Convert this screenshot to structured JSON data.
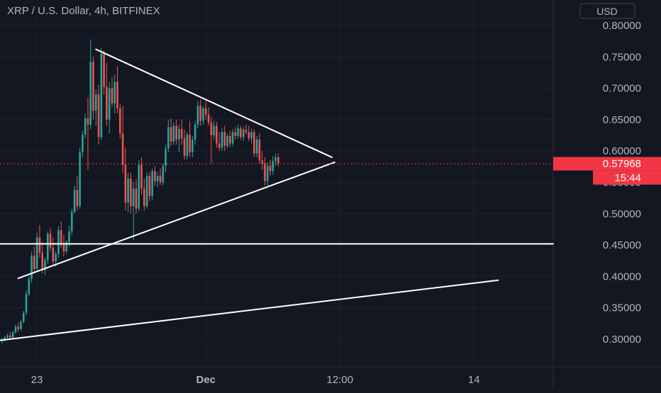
{
  "header": {
    "title": "XRP / U.S. Dollar, 4h, BITFINEX",
    "currency_button": "USD"
  },
  "colors": {
    "background": "#131722",
    "grid": "#1e222d",
    "up": "#26a69a",
    "down": "#ef5350",
    "axis_text": "#b2b5be",
    "lines": "#ffffff",
    "price_label": "#f23645"
  },
  "chart_data": {
    "type": "candlestick",
    "symbol": "XRP / U.S. Dollar",
    "interval": "4h",
    "exchange": "BITFINEX",
    "currency": "USD",
    "ylim": [
      0.28,
      0.82
    ],
    "y_ticks": [
      "0.80000",
      "0.75000",
      "0.70000",
      "0.65000",
      "0.60000",
      "0.55000",
      "0.50000",
      "0.45000",
      "0.40000",
      "0.35000",
      "0.30000"
    ],
    "x_ticks": [
      "23",
      "Dec",
      "12:00",
      "14"
    ],
    "x_tick_index": [
      13,
      76,
      126,
      176
    ],
    "last_price": "0.57968",
    "last_price_value": 0.57968,
    "countdown": "15:44",
    "candles": [
      [
        0.297,
        0.302,
        0.293,
        0.299
      ],
      [
        0.299,
        0.305,
        0.296,
        0.303
      ],
      [
        0.303,
        0.309,
        0.3,
        0.306
      ],
      [
        0.306,
        0.312,
        0.3,
        0.303
      ],
      [
        0.303,
        0.313,
        0.301,
        0.311
      ],
      [
        0.311,
        0.323,
        0.309,
        0.32
      ],
      [
        0.32,
        0.326,
        0.312,
        0.316
      ],
      [
        0.316,
        0.33,
        0.314,
        0.328
      ],
      [
        0.328,
        0.345,
        0.325,
        0.342
      ],
      [
        0.342,
        0.378,
        0.338,
        0.372
      ],
      [
        0.372,
        0.4,
        0.368,
        0.396
      ],
      [
        0.396,
        0.44,
        0.39,
        0.433
      ],
      [
        0.433,
        0.447,
        0.405,
        0.412
      ],
      [
        0.412,
        0.47,
        0.408,
        0.462
      ],
      [
        0.462,
        0.482,
        0.43,
        0.438
      ],
      [
        0.438,
        0.455,
        0.405,
        0.41
      ],
      [
        0.41,
        0.43,
        0.402,
        0.426
      ],
      [
        0.426,
        0.472,
        0.42,
        0.468
      ],
      [
        0.468,
        0.478,
        0.44,
        0.446
      ],
      [
        0.446,
        0.462,
        0.418,
        0.424
      ],
      [
        0.424,
        0.44,
        0.415,
        0.436
      ],
      [
        0.436,
        0.48,
        0.43,
        0.474
      ],
      [
        0.474,
        0.488,
        0.445,
        0.452
      ],
      [
        0.452,
        0.466,
        0.432,
        0.44
      ],
      [
        0.44,
        0.458,
        0.436,
        0.455
      ],
      [
        0.455,
        0.48,
        0.448,
        0.472
      ],
      [
        0.472,
        0.508,
        0.466,
        0.503
      ],
      [
        0.503,
        0.545,
        0.5,
        0.538
      ],
      [
        0.538,
        0.56,
        0.505,
        0.512
      ],
      [
        0.512,
        0.605,
        0.508,
        0.598
      ],
      [
        0.598,
        0.632,
        0.59,
        0.626
      ],
      [
        0.626,
        0.66,
        0.62,
        0.652
      ],
      [
        0.652,
        0.685,
        0.57,
        0.642
      ],
      [
        0.642,
        0.778,
        0.635,
        0.742
      ],
      [
        0.742,
        0.75,
        0.65,
        0.664
      ],
      [
        0.664,
        0.698,
        0.64,
        0.69
      ],
      [
        0.69,
        0.705,
        0.61,
        0.622
      ],
      [
        0.622,
        0.765,
        0.618,
        0.755
      ],
      [
        0.755,
        0.76,
        0.69,
        0.702
      ],
      [
        0.702,
        0.74,
        0.64,
        0.65
      ],
      [
        0.65,
        0.71,
        0.628,
        0.7
      ],
      [
        0.7,
        0.718,
        0.67,
        0.676
      ],
      [
        0.676,
        0.722,
        0.66,
        0.71
      ],
      [
        0.71,
        0.735,
        0.66,
        0.668
      ],
      [
        0.668,
        0.675,
        0.62,
        0.628
      ],
      [
        0.628,
        0.672,
        0.565,
        0.578
      ],
      [
        0.578,
        0.605,
        0.505,
        0.518
      ],
      [
        0.518,
        0.565,
        0.502,
        0.556
      ],
      [
        0.556,
        0.566,
        0.5,
        0.512
      ],
      [
        0.512,
        0.55,
        0.458,
        0.54
      ],
      [
        0.54,
        0.555,
        0.5,
        0.508
      ],
      [
        0.508,
        0.586,
        0.504,
        0.578
      ],
      [
        0.578,
        0.59,
        0.53,
        0.54
      ],
      [
        0.54,
        0.556,
        0.505,
        0.512
      ],
      [
        0.512,
        0.566,
        0.508,
        0.56
      ],
      [
        0.56,
        0.566,
        0.52,
        0.528
      ],
      [
        0.528,
        0.572,
        0.522,
        0.568
      ],
      [
        0.568,
        0.576,
        0.545,
        0.552
      ],
      [
        0.552,
        0.566,
        0.542,
        0.56
      ],
      [
        0.56,
        0.572,
        0.546,
        0.55
      ],
      [
        0.55,
        0.58,
        0.545,
        0.576
      ],
      [
        0.576,
        0.61,
        0.566,
        0.604
      ],
      [
        0.604,
        0.65,
        0.598,
        0.638
      ],
      [
        0.638,
        0.652,
        0.608,
        0.615
      ],
      [
        0.615,
        0.646,
        0.61,
        0.64
      ],
      [
        0.64,
        0.65,
        0.61,
        0.618
      ],
      [
        0.618,
        0.642,
        0.598,
        0.635
      ],
      [
        0.635,
        0.65,
        0.61,
        0.62
      ],
      [
        0.62,
        0.634,
        0.586,
        0.592
      ],
      [
        0.592,
        0.63,
        0.586,
        0.626
      ],
      [
        0.626,
        0.648,
        0.59,
        0.598
      ],
      [
        0.598,
        0.624,
        0.59,
        0.618
      ],
      [
        0.618,
        0.648,
        0.61,
        0.642
      ],
      [
        0.642,
        0.68,
        0.636,
        0.672
      ],
      [
        0.672,
        0.682,
        0.64,
        0.648
      ],
      [
        0.648,
        0.672,
        0.642,
        0.668
      ],
      [
        0.668,
        0.68,
        0.65,
        0.658
      ],
      [
        0.658,
        0.67,
        0.64,
        0.645
      ],
      [
        0.645,
        0.655,
        0.58,
        0.625
      ],
      [
        0.625,
        0.648,
        0.618,
        0.64
      ],
      [
        0.64,
        0.646,
        0.605,
        0.612
      ],
      [
        0.612,
        0.63,
        0.6,
        0.605
      ],
      [
        0.605,
        0.636,
        0.6,
        0.63
      ],
      [
        0.63,
        0.64,
        0.6,
        0.608
      ],
      [
        0.608,
        0.628,
        0.604,
        0.624
      ],
      [
        0.624,
        0.632,
        0.606,
        0.612
      ],
      [
        0.612,
        0.635,
        0.608,
        0.63
      ],
      [
        0.63,
        0.638,
        0.618,
        0.624
      ],
      [
        0.624,
        0.642,
        0.62,
        0.636
      ],
      [
        0.636,
        0.64,
        0.618,
        0.622
      ],
      [
        0.622,
        0.638,
        0.616,
        0.634
      ],
      [
        0.634,
        0.642,
        0.626,
        0.63
      ],
      [
        0.63,
        0.64,
        0.616,
        0.62
      ],
      [
        0.62,
        0.636,
        0.612,
        0.63
      ],
      [
        0.63,
        0.634,
        0.59,
        0.596
      ],
      [
        0.596,
        0.624,
        0.59,
        0.618
      ],
      [
        0.618,
        0.628,
        0.58,
        0.585
      ],
      [
        0.585,
        0.6,
        0.57,
        0.58
      ],
      [
        0.58,
        0.59,
        0.545,
        0.552
      ],
      [
        0.552,
        0.582,
        0.545,
        0.576
      ],
      [
        0.576,
        0.586,
        0.56,
        0.568
      ],
      [
        0.568,
        0.592,
        0.562,
        0.584
      ],
      [
        0.584,
        0.596,
        0.576,
        0.59
      ],
      [
        0.59,
        0.596,
        0.575,
        0.58
      ]
    ],
    "drawings": [
      {
        "name": "descending-resistance",
        "from": [
          35,
          0.762
        ],
        "to": [
          123,
          0.59
        ]
      },
      {
        "name": "ascending-support",
        "from": [
          6,
          0.397
        ],
        "to": [
          124,
          0.582
        ]
      },
      {
        "name": "horizontal-support",
        "value": 0.452
      },
      {
        "name": "long-term-trendline",
        "from": [
          -1,
          0.298
        ],
        "to": [
          185,
          0.394
        ]
      }
    ]
  }
}
